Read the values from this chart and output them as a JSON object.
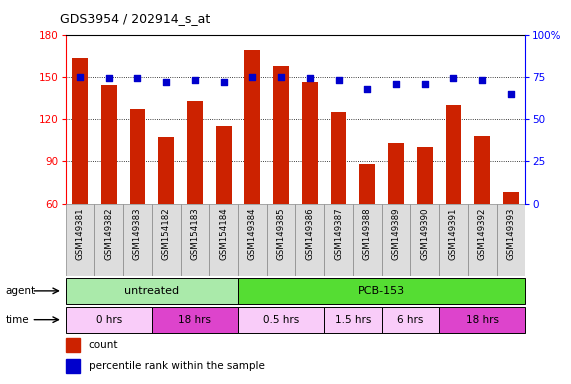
{
  "title": "GDS3954 / 202914_s_at",
  "samples": [
    "GSM149381",
    "GSM149382",
    "GSM149383",
    "GSM154182",
    "GSM154183",
    "GSM154184",
    "GSM149384",
    "GSM149385",
    "GSM149386",
    "GSM149387",
    "GSM149388",
    "GSM149389",
    "GSM149390",
    "GSM149391",
    "GSM149392",
    "GSM149393"
  ],
  "counts": [
    163,
    144,
    127,
    107,
    133,
    115,
    169,
    158,
    146,
    125,
    88,
    103,
    100,
    130,
    108,
    68
  ],
  "percentile_ranks": [
    75,
    74,
    74,
    72,
    73,
    72,
    75,
    75,
    74,
    73,
    68,
    71,
    71,
    74,
    73,
    65
  ],
  "ylim_left": [
    60,
    180
  ],
  "ylim_right": [
    0,
    100
  ],
  "yticks_left": [
    60,
    90,
    120,
    150,
    180
  ],
  "yticks_right": [
    0,
    25,
    50,
    75,
    100
  ],
  "bar_color": "#cc2200",
  "dot_color": "#0000cc",
  "agent_groups": [
    {
      "label": "untreated",
      "start": 0,
      "end": 6,
      "color": "#aaeaaa"
    },
    {
      "label": "PCB-153",
      "start": 6,
      "end": 16,
      "color": "#55dd33"
    }
  ],
  "time_groups": [
    {
      "label": "0 hrs",
      "start": 0,
      "end": 3,
      "color": "#f9ccf9"
    },
    {
      "label": "18 hrs",
      "start": 3,
      "end": 6,
      "color": "#dd44cc"
    },
    {
      "label": "0.5 hrs",
      "start": 6,
      "end": 9,
      "color": "#f9ccf9"
    },
    {
      "label": "1.5 hrs",
      "start": 9,
      "end": 11,
      "color": "#f9ccf9"
    },
    {
      "label": "6 hrs",
      "start": 11,
      "end": 13,
      "color": "#f9ccf9"
    },
    {
      "label": "18 hrs",
      "start": 13,
      "end": 16,
      "color": "#dd44cc"
    }
  ],
  "legend_items": [
    {
      "label": "count",
      "color": "#cc2200"
    },
    {
      "label": "percentile rank within the sample",
      "color": "#0000cc"
    }
  ]
}
